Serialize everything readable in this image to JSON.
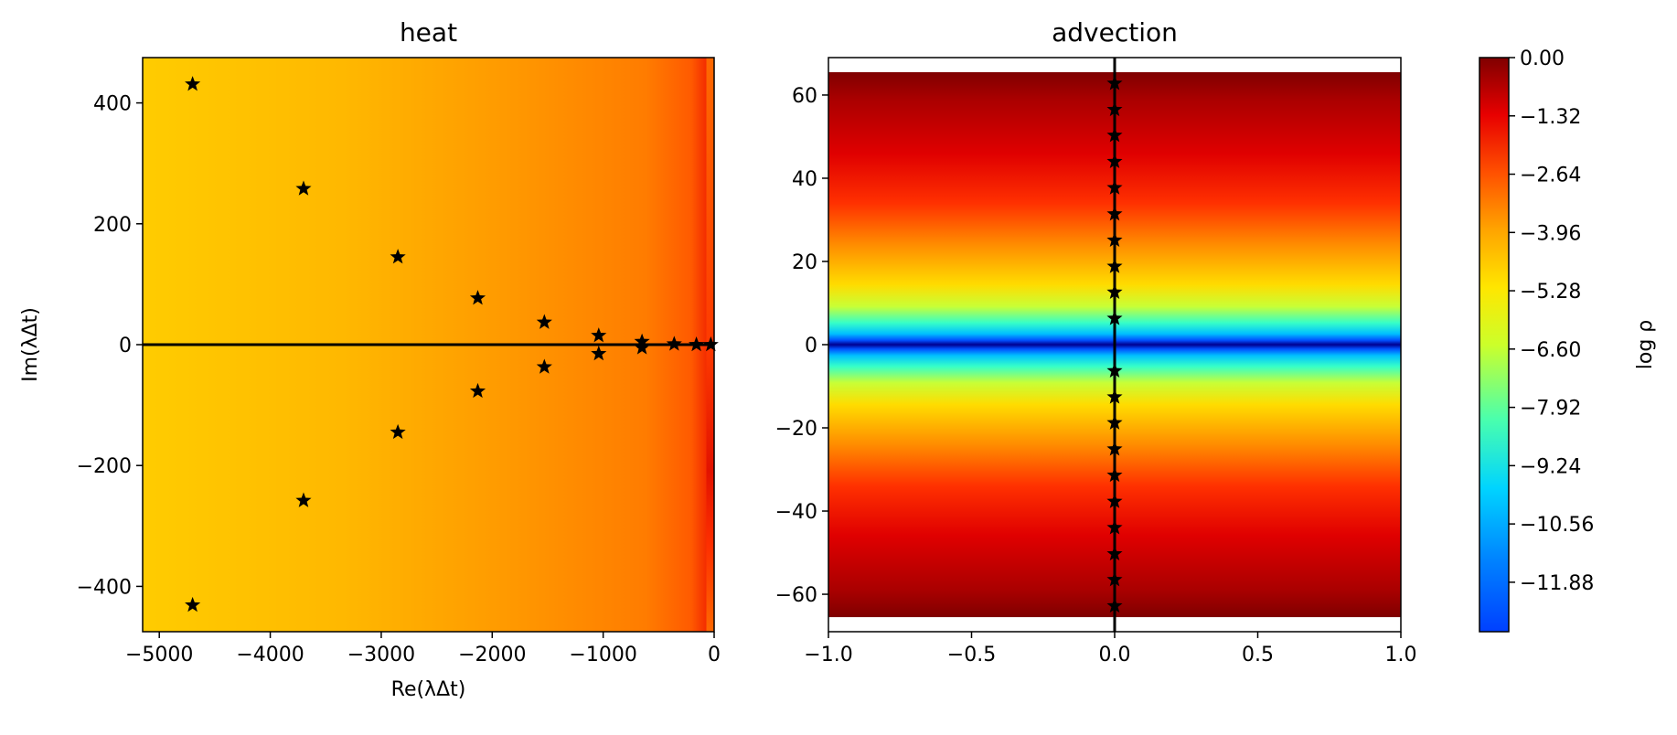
{
  "chart_data": [
    {
      "type": "scatter",
      "title": "heat",
      "xlabel": "Re(λΔt)",
      "ylabel": "Im(λΔt)",
      "xlim": [
        -5150,
        0
      ],
      "ylim": [
        -475,
        475
      ],
      "xticks": [
        -5000,
        -4000,
        -3000,
        -2000,
        -1000,
        0
      ],
      "xtick_labels": [
        "−5000",
        "−4000",
        "−3000",
        "−2000",
        "−1000",
        "0"
      ],
      "yticks": [
        -400,
        -200,
        0,
        200,
        400
      ],
      "ytick_labels": [
        "−400",
        "−200",
        "0",
        "200",
        "400"
      ],
      "reference_line": {
        "orientation": "horizontal",
        "value": 0
      },
      "background": "heatmap of log ρ over the complex plane",
      "marker": "star",
      "points": [
        {
          "x": -4700,
          "y": 431
        },
        {
          "x": -4700,
          "y": -431
        },
        {
          "x": -3700,
          "y": 258
        },
        {
          "x": -3700,
          "y": -258
        },
        {
          "x": -2850,
          "y": 145
        },
        {
          "x": -2850,
          "y": -145
        },
        {
          "x": -2130,
          "y": 77
        },
        {
          "x": -2130,
          "y": -77
        },
        {
          "x": -1530,
          "y": 37
        },
        {
          "x": -1530,
          "y": -37
        },
        {
          "x": -1040,
          "y": 15
        },
        {
          "x": -1040,
          "y": -15
        },
        {
          "x": -650,
          "y": 5
        },
        {
          "x": -650,
          "y": -5
        },
        {
          "x": -360,
          "y": 1
        },
        {
          "x": -160,
          "y": 0
        },
        {
          "x": -30,
          "y": 0
        }
      ]
    },
    {
      "type": "scatter",
      "title": "advection",
      "xlabel": "",
      "ylabel": "",
      "xlim": [
        -1.0,
        1.0
      ],
      "ylim": [
        -69,
        69
      ],
      "xticks": [
        -1.0,
        -0.5,
        0.0,
        0.5,
        1.0
      ],
      "xtick_labels": [
        "−1.0",
        "−0.5",
        "0.0",
        "0.5",
        "1.0"
      ],
      "yticks": [
        -60,
        -40,
        -20,
        0,
        20,
        40,
        60
      ],
      "ytick_labels": [
        "−60",
        "−40",
        "−20",
        "0",
        "20",
        "40",
        "60"
      ],
      "reference_line": {
        "orientation": "vertical",
        "value": 0
      },
      "background": "heatmap of log ρ, varying with Im, from |Im| = 0 to 65.5",
      "marker": "star",
      "points": [
        {
          "x": 0,
          "y": 62.8
        },
        {
          "x": 0,
          "y": 56.5
        },
        {
          "x": 0,
          "y": 50.3
        },
        {
          "x": 0,
          "y": 44.0
        },
        {
          "x": 0,
          "y": 37.7
        },
        {
          "x": 0,
          "y": 31.4
        },
        {
          "x": 0,
          "y": 25.1
        },
        {
          "x": 0,
          "y": 18.8
        },
        {
          "x": 0,
          "y": 12.6
        },
        {
          "x": 0,
          "y": 6.3
        },
        {
          "x": 0,
          "y": -6.3
        },
        {
          "x": 0,
          "y": -12.6
        },
        {
          "x": 0,
          "y": -18.8
        },
        {
          "x": 0,
          "y": -25.1
        },
        {
          "x": 0,
          "y": -31.4
        },
        {
          "x": 0,
          "y": -37.7
        },
        {
          "x": 0,
          "y": -44.0
        },
        {
          "x": 0,
          "y": -50.3
        },
        {
          "x": 0,
          "y": -56.5
        },
        {
          "x": 0,
          "y": -62.8
        }
      ]
    },
    {
      "type": "colorbar",
      "label": "log ρ",
      "colormap": "jet",
      "range": [
        -13.0,
        0.0
      ],
      "ticks": [
        0.0,
        -1.32,
        -2.64,
        -3.96,
        -5.28,
        -6.6,
        -7.92,
        -9.24,
        -10.56,
        -11.88
      ],
      "tick_labels": [
        "0.00",
        "−1.32",
        "−2.64",
        "−3.96",
        "−5.28",
        "−6.60",
        "−7.92",
        "−9.24",
        "−10.56",
        "−11.88"
      ]
    }
  ]
}
